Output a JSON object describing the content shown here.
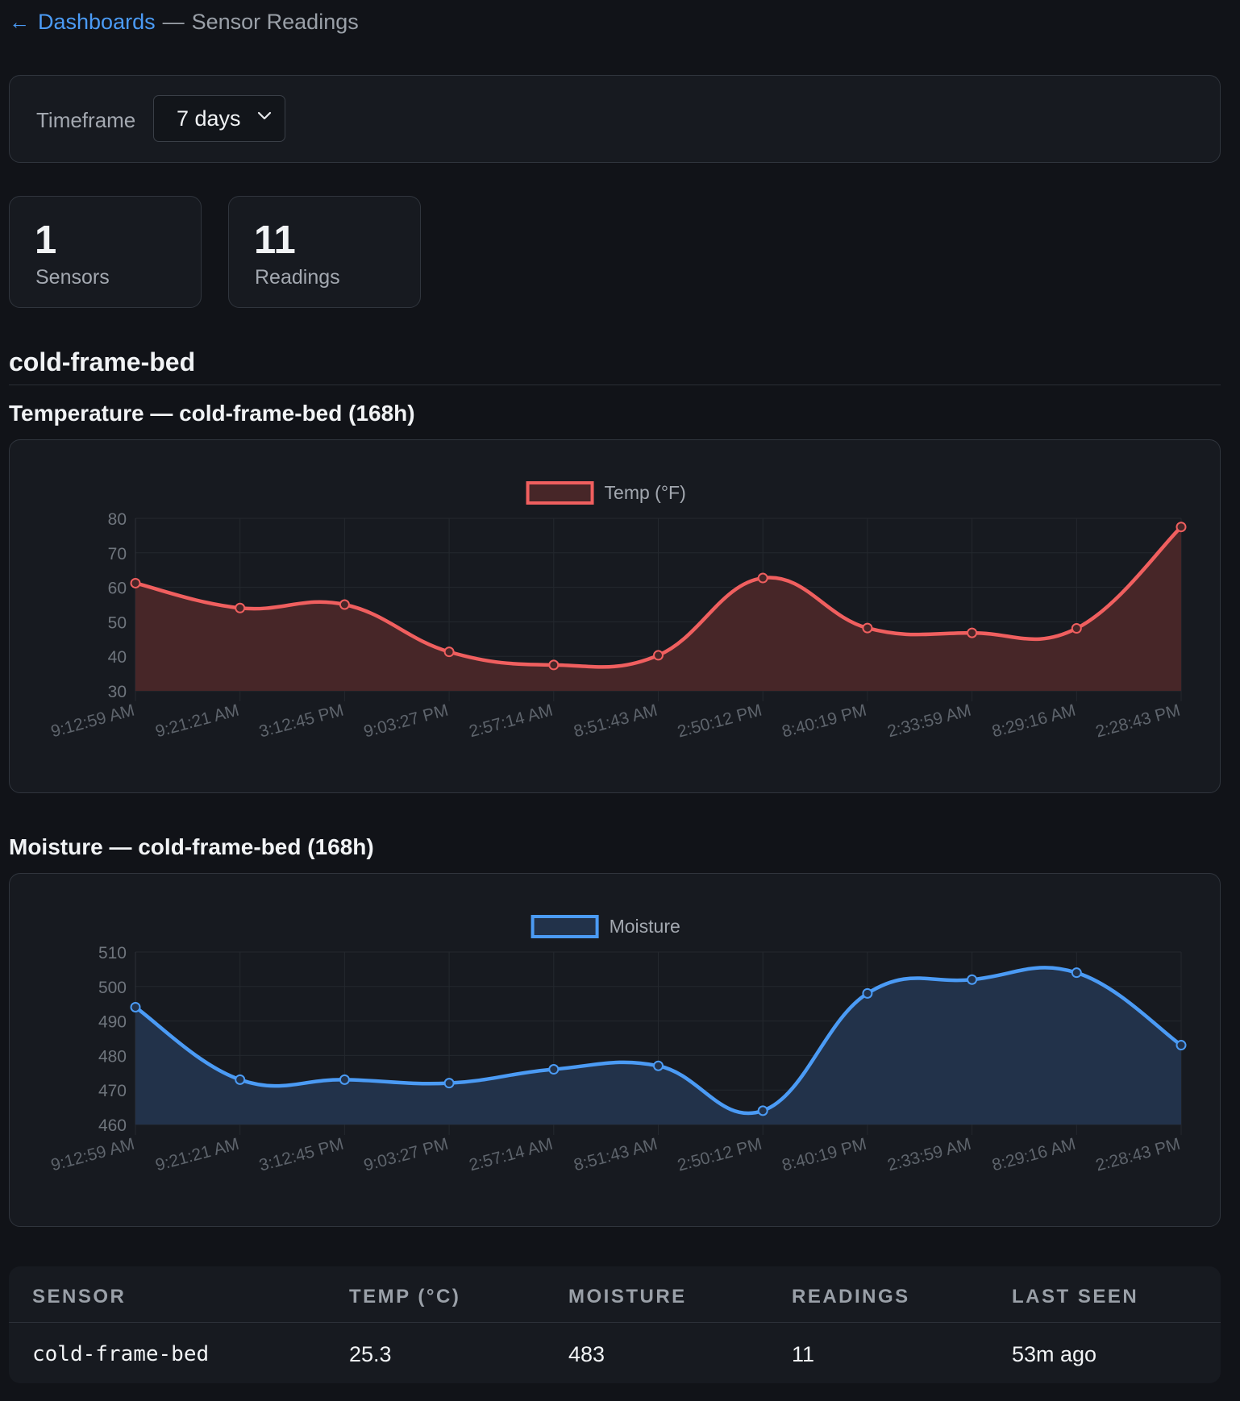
{
  "breadcrumb": {
    "back_label": "Dashboards",
    "separator": "—",
    "current": "Sensor Readings"
  },
  "timeframe": {
    "label": "Timeframe",
    "selected": "7 days"
  },
  "stats": [
    {
      "value": "1",
      "label": "Sensors"
    },
    {
      "value": "11",
      "label": "Readings"
    }
  ],
  "sensor_section": {
    "title": "cold-frame-bed"
  },
  "charts": {
    "temperature": {
      "title": "Temperature — cold-frame-bed (168h)"
    },
    "moisture": {
      "title": "Moisture — cold-frame-bed (168h)"
    }
  },
  "chart_data": [
    {
      "type": "line",
      "categories": [
        "9:12:59 AM",
        "9:21:21 AM",
        "3:12:45 PM",
        "9:03:27 PM",
        "2:57:14 AM",
        "8:51:43 AM",
        "2:50:12 PM",
        "8:40:19 PM",
        "2:33:59 AM",
        "8:29:16 AM",
        "2:28:43 PM"
      ],
      "series": [
        {
          "name": "Temp (°F)",
          "values": [
            61.2,
            54.0,
            55.0,
            41.3,
            37.5,
            40.3,
            62.7,
            48.2,
            46.8,
            48.1,
            77.5
          ]
        }
      ],
      "ylim": [
        30,
        80
      ],
      "yticks": [
        30,
        40,
        50,
        60,
        70,
        80
      ],
      "fill": true,
      "smooth": true,
      "grid": true,
      "legend": "top",
      "line_color": "#f05f5f",
      "fill_color": "#472628"
    },
    {
      "type": "line",
      "categories": [
        "9:12:59 AM",
        "9:21:21 AM",
        "3:12:45 PM",
        "9:03:27 PM",
        "2:57:14 AM",
        "8:51:43 AM",
        "2:50:12 PM",
        "8:40:19 PM",
        "2:33:59 AM",
        "8:29:16 AM",
        "2:28:43 PM"
      ],
      "series": [
        {
          "name": "Moisture",
          "values": [
            494,
            473,
            473,
            472,
            476,
            477,
            464,
            498,
            502,
            504,
            483
          ]
        }
      ],
      "ylim": [
        460,
        510
      ],
      "yticks": [
        460,
        470,
        480,
        490,
        500,
        510
      ],
      "fill": true,
      "smooth": true,
      "grid": true,
      "legend": "top",
      "line_color": "#4b9bf5",
      "fill_color": "#22324a"
    }
  ],
  "table": {
    "headers": [
      "Sensor",
      "Temp (°C)",
      "Moisture",
      "Readings",
      "Last Seen"
    ],
    "rows": [
      {
        "sensor": "cold-frame-bed",
        "temp": "25.3",
        "moisture": "483",
        "readings": "11",
        "last_seen": "53m ago"
      }
    ]
  },
  "colors": {
    "accent": "#4b9bf5",
    "background": "#111318",
    "panel": "#171a20",
    "border": "#30353d"
  }
}
